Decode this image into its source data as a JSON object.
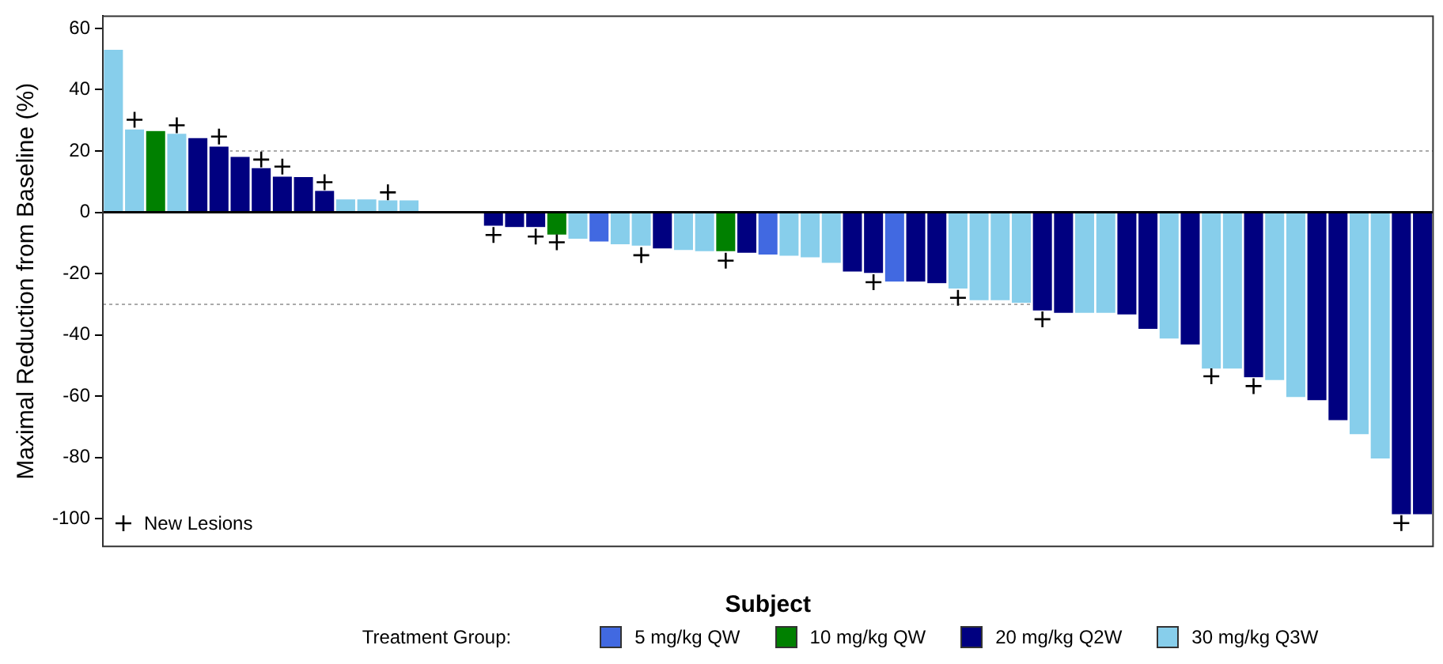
{
  "chart_data": {
    "type": "bar",
    "xlabel": "Subject",
    "ylabel": "Maximal Reduction from Baseline (%)",
    "categories": [
      null,
      null,
      null,
      null,
      null,
      null,
      null,
      null,
      null,
      null,
      null,
      null,
      null,
      null,
      null,
      null,
      null,
      null,
      null,
      null,
      null,
      null,
      null,
      null,
      null,
      null,
      null,
      null,
      null,
      null,
      null,
      null,
      null,
      null,
      null,
      null,
      null,
      null,
      null,
      null,
      null,
      null,
      null,
      null,
      null,
      null,
      null,
      null,
      null,
      null,
      null,
      null,
      null,
      null,
      null,
      null,
      null,
      null,
      null,
      null,
      null,
      null,
      null
    ],
    "ylim": [
      -109,
      64
    ],
    "yticks": [
      -100,
      -80,
      -60,
      -40,
      -20,
      0,
      20,
      40,
      60
    ],
    "grid": false,
    "legend": "bottom",
    "legend_title": "Treatment Group:",
    "ref_lines": [
      {
        "axis": "y",
        "value": 20,
        "color": "#aaaaaa",
        "line_style": "dotted"
      },
      {
        "axis": "y",
        "value": -30,
        "color": "#aaaaaa",
        "line_style": "dotted"
      }
    ],
    "series": [
      {
        "name": "5 mg/kg QW",
        "color": "#4169e1",
        "values": [
          null,
          null,
          null,
          null,
          null,
          null,
          null,
          null,
          null,
          null,
          null,
          null,
          null,
          null,
          null,
          null,
          null,
          null,
          null,
          null,
          null,
          null,
          null,
          -9.5,
          null,
          null,
          null,
          null,
          null,
          null,
          null,
          -13.8,
          null,
          null,
          null,
          null,
          null,
          -22.6,
          null,
          null,
          null,
          null,
          null,
          null,
          null,
          null,
          null,
          null,
          null,
          null,
          null,
          null,
          null,
          null,
          null,
          null,
          null,
          null,
          null,
          null,
          null,
          null,
          null
        ]
      },
      {
        "name": "10 mg/kg QW",
        "color": "#008000",
        "values": [
          null,
          null,
          26.5,
          null,
          null,
          null,
          null,
          null,
          null,
          null,
          null,
          null,
          null,
          null,
          null,
          null,
          null,
          null,
          null,
          null,
          null,
          -7.3,
          null,
          null,
          null,
          null,
          null,
          null,
          null,
          -12.7,
          null,
          null,
          null,
          null,
          null,
          null,
          null,
          null,
          null,
          null,
          null,
          null,
          null,
          null,
          null,
          null,
          null,
          null,
          null,
          null,
          null,
          null,
          null,
          null,
          null,
          null,
          null,
          null,
          null,
          null,
          null,
          null,
          null
        ]
      },
      {
        "name": "20 mg/kg Q2W",
        "color": "#000080",
        "values": [
          null,
          null,
          null,
          null,
          24.2,
          21.4,
          18.1,
          14.4,
          11.6,
          11.5,
          7,
          null,
          null,
          null,
          null,
          null,
          null,
          null,
          -4.4,
          -4.8,
          -4.8,
          null,
          null,
          null,
          null,
          null,
          -11.8,
          null,
          null,
          null,
          -13.2,
          null,
          null,
          null,
          null,
          -19.3,
          -19.8,
          null,
          -22.6,
          -23.1,
          null,
          null,
          null,
          null,
          -32,
          -32.8,
          null,
          null,
          -33.3,
          -38,
          null,
          -43.1,
          null,
          null,
          -53.8,
          null,
          null,
          -61.3,
          -67.8,
          null,
          null,
          -98.5,
          -98.5
        ]
      },
      {
        "name": "30 mg/kg Q3W",
        "color": "#87ceeb",
        "values": [
          53,
          27,
          null,
          25.6,
          null,
          null,
          null,
          null,
          null,
          null,
          null,
          4.2,
          4.2,
          3.9,
          3.9,
          0,
          0,
          0,
          null,
          null,
          null,
          null,
          -8.6,
          null,
          -10.4,
          -10.9,
          null,
          -12.3,
          -12.7,
          null,
          null,
          null,
          -14.2,
          -14.7,
          -16.5,
          null,
          null,
          null,
          null,
          null,
          -24.9,
          -28.7,
          -28.7,
          -29.5,
          null,
          null,
          -32.8,
          -32.8,
          null,
          null,
          -41.2,
          null,
          -51,
          -51,
          null,
          -54.7,
          -60.3,
          null,
          null,
          -72.4,
          -80.3,
          null,
          null
        ]
      },
      {
        "name": "New Lesions",
        "type": "scatter",
        "marker": "cross",
        "color": "#000000",
        "values": [
          null,
          30.2,
          null,
          28.4,
          null,
          24.7,
          null,
          17.2,
          14.9,
          null,
          9.8,
          null,
          null,
          6.5,
          null,
          null,
          null,
          null,
          -7.4,
          null,
          -7.9,
          -9.8,
          null,
          null,
          null,
          -14,
          null,
          null,
          null,
          -15.8,
          null,
          null,
          null,
          null,
          null,
          null,
          -22.8,
          null,
          null,
          null,
          -27.9,
          null,
          null,
          null,
          -34.9,
          null,
          null,
          null,
          null,
          null,
          null,
          null,
          -53.5,
          null,
          -56.7,
          null,
          null,
          null,
          null,
          null,
          null,
          -101.4,
          null
        ]
      }
    ]
  }
}
